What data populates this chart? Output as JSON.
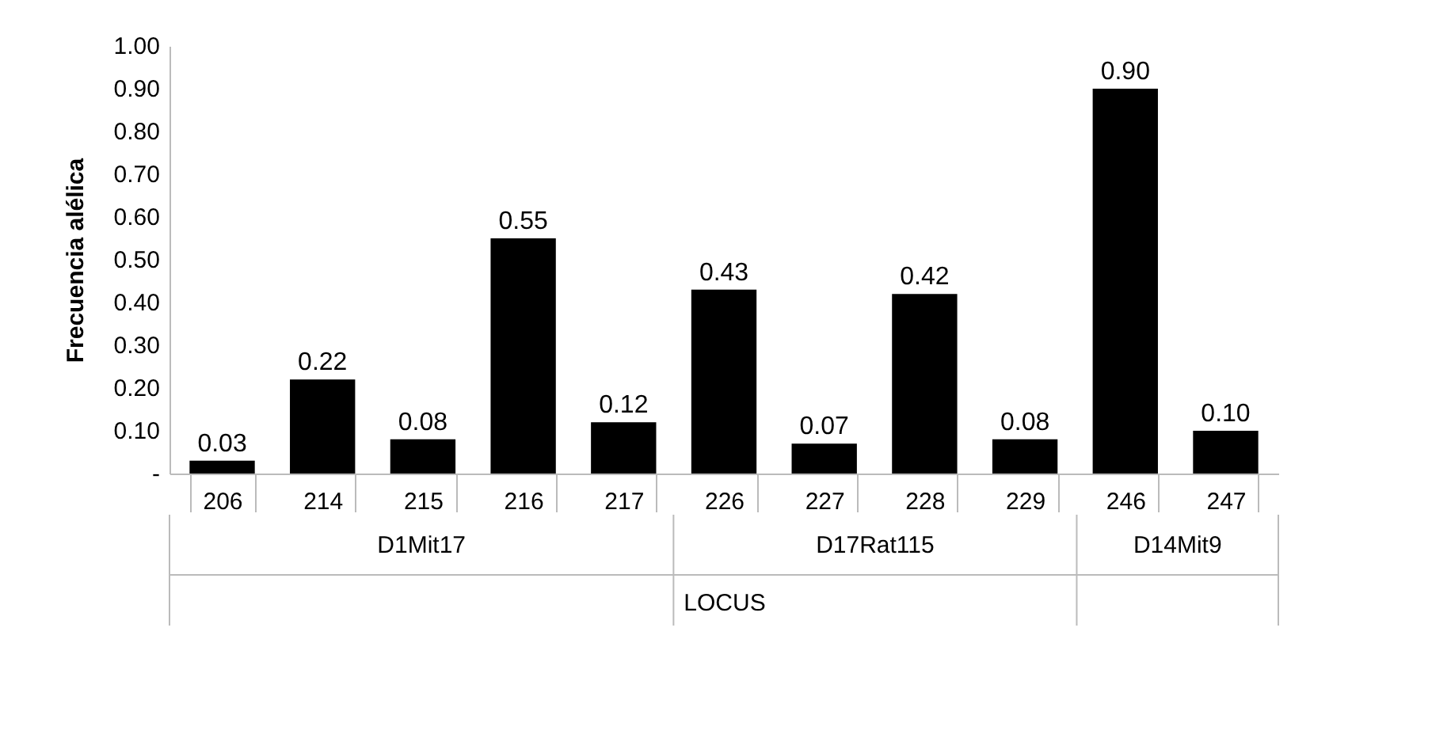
{
  "chart_data": {
    "type": "bar",
    "ylabel": "Frecuencia alélica",
    "xlabel": "LOCUS",
    "categories": [
      "206",
      "214",
      "215",
      "216",
      "217",
      "226",
      "227",
      "228",
      "229",
      "246",
      "247"
    ],
    "values": [
      0.03,
      0.22,
      0.08,
      0.55,
      0.12,
      0.43,
      0.07,
      0.42,
      0.08,
      0.9,
      0.1
    ],
    "value_labels": [
      "0.03",
      "0.22",
      "0.08",
      "0.55",
      "0.12",
      "0.43",
      "0.07",
      "0.42",
      "0.08",
      "0.90",
      "0.10"
    ],
    "color": "#000000",
    "ylim": [
      0,
      1
    ],
    "yticks": [
      {
        "value": 0,
        "label": "-"
      },
      {
        "value": 0.1,
        "label": "0.10"
      },
      {
        "value": 0.2,
        "label": "0.20"
      },
      {
        "value": 0.3,
        "label": "0.30"
      },
      {
        "value": 0.4,
        "label": "0.40"
      },
      {
        "value": 0.5,
        "label": "0.50"
      },
      {
        "value": 0.6,
        "label": "0.60"
      },
      {
        "value": 0.7,
        "label": "0.70"
      },
      {
        "value": 0.8,
        "label": "0.80"
      },
      {
        "value": 0.9,
        "label": "0.90"
      },
      {
        "value": 1,
        "label": "1.00"
      }
    ],
    "annotations": [
      "D1Mit17",
      "D17Rat115",
      "D14Mit9"
    ],
    "grid": false
  }
}
